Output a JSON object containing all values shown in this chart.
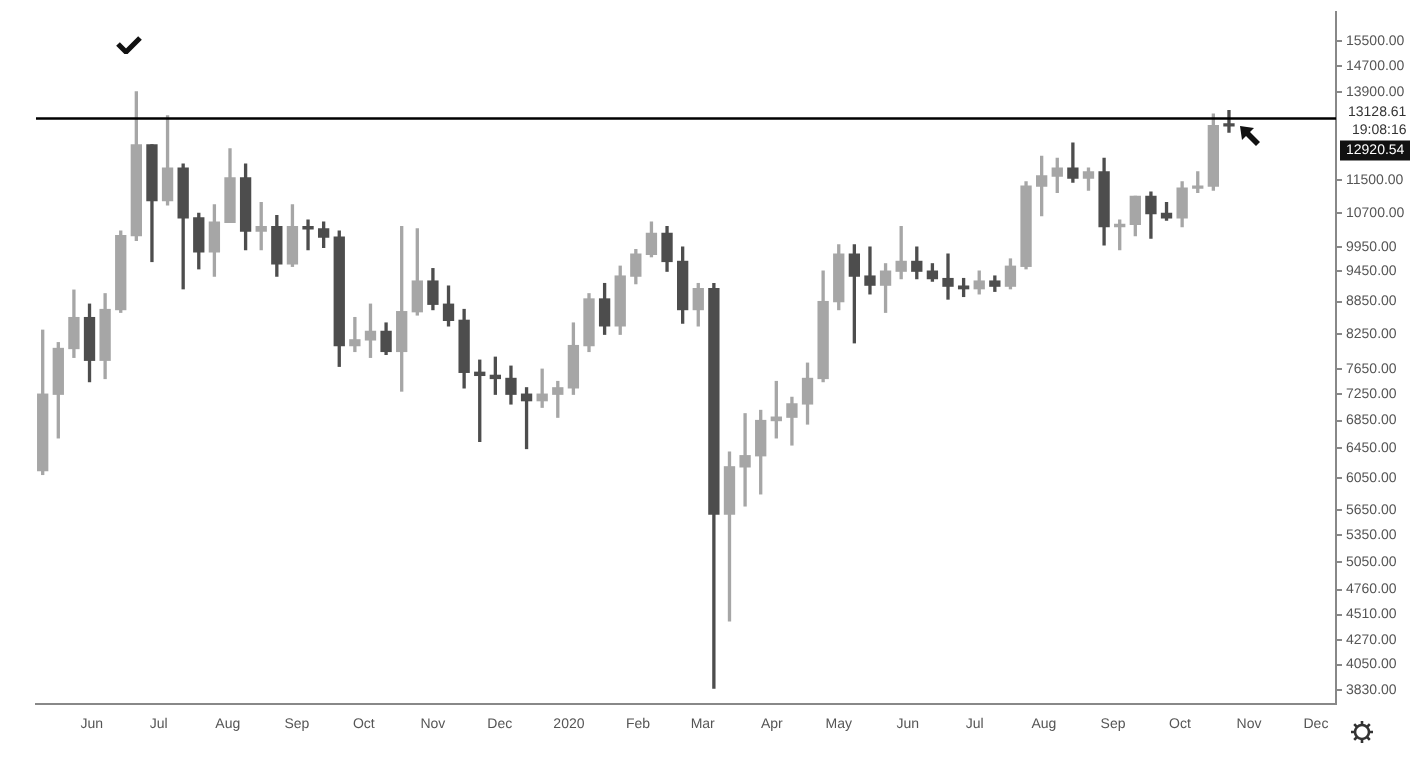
{
  "chart_data": {
    "type": "candlestick",
    "colors": [
      "#a6a6a6",
      "#a6a6a6",
      "#a6a6a6",
      "#4d4d4d",
      "#a6a6a6",
      "#a6a6a6",
      "#a6a6a6",
      "#4d4d4d",
      "#a6a6a6",
      "#4d4d4d",
      "#4d4d4d",
      "#a6a6a6",
      "#a6a6a6",
      "#4d4d4d",
      "#a6a6a6",
      "#4d4d4d",
      "#a6a6a6",
      "#4d4d4d",
      "#4d4d4d",
      "#4d4d4d",
      "#a6a6a6",
      "#a6a6a6",
      "#4d4d4d",
      "#a6a6a6",
      "#a6a6a6",
      "#4d4d4d",
      "#4d4d4d",
      "#4d4d4d",
      "#4d4d4d",
      "#4d4d4d",
      "#4d4d4d",
      "#4d4d4d",
      "#a6a6a6",
      "#a6a6a6",
      "#a6a6a6",
      "#a6a6a6",
      "#4d4d4d",
      "#a6a6a6",
      "#a6a6a6",
      "#a6a6a6",
      "#4d4d4d",
      "#4d4d4d",
      "#a6a6a6",
      "#4d4d4d",
      "#a6a6a6",
      "#a6a6a6",
      "#a6a6a6",
      "#a6a6a6",
      "#a6a6a6",
      "#a6a6a6",
      "#a6a6a6",
      "#a6a6a6",
      "#4d4d4d",
      "#4d4d4d",
      "#a6a6a6",
      "#a6a6a6",
      "#4d4d4d",
      "#4d4d4d",
      "#4d4d4d",
      "#4d4d4d",
      "#a6a6a6",
      "#4d4d4d",
      "#a6a6a6",
      "#a6a6a6",
      "#a6a6a6",
      "#a6a6a6",
      "#4d4d4d",
      "#a6a6a6",
      "#4d4d4d",
      "#a6a6a6",
      "#a6a6a6",
      "#4d4d4d",
      "#4d4d4d",
      "#a6a6a6",
      "#a6a6a6",
      "#a6a6a6",
      "#4d4d4d"
    ],
    "log": "y",
    "grid": false,
    "legend": false,
    "x": [
      "2019-05-10",
      "2019-05-17",
      "2019-05-24",
      "2019-05-31",
      "2019-06-07",
      "2019-06-14",
      "2019-06-21",
      "2019-06-28",
      "2019-07-05",
      "2019-07-12",
      "2019-07-19",
      "2019-07-26",
      "2019-08-02",
      "2019-08-09",
      "2019-08-16",
      "2019-08-23",
      "2019-08-30",
      "2019-09-06",
      "2019-09-13",
      "2019-09-20",
      "2019-09-27",
      "2019-10-04",
      "2019-10-11",
      "2019-10-18",
      "2019-10-25",
      "2019-11-01",
      "2019-11-08",
      "2019-11-15",
      "2019-11-22",
      "2019-11-29",
      "2019-12-06",
      "2019-12-13",
      "2019-12-20",
      "2019-12-27",
      "2020-01-03",
      "2020-01-10",
      "2020-01-17",
      "2020-01-24",
      "2020-01-31",
      "2020-02-07",
      "2020-02-14",
      "2020-02-21",
      "2020-02-28",
      "2020-03-06",
      "2020-03-13",
      "2020-03-20",
      "2020-03-27",
      "2020-04-03",
      "2020-04-10",
      "2020-04-17",
      "2020-04-24",
      "2020-05-01",
      "2020-05-08",
      "2020-05-15",
      "2020-05-22",
      "2020-05-29",
      "2020-06-05",
      "2020-06-12",
      "2020-06-19",
      "2020-06-26",
      "2020-07-03",
      "2020-07-10",
      "2020-07-17",
      "2020-07-24",
      "2020-07-31",
      "2020-08-07",
      "2020-08-14",
      "2020-08-21",
      "2020-08-28",
      "2020-09-04",
      "2020-09-11",
      "2020-09-18",
      "2020-09-25",
      "2020-10-02",
      "2020-10-09",
      "2020-10-16",
      "2020-10-23"
    ],
    "ohlc": [
      [
        6150,
        8320,
        6100,
        7250
      ],
      [
        7250,
        8100,
        6600,
        8000
      ],
      [
        8000,
        9070,
        7850,
        8550
      ],
      [
        8550,
        8800,
        7450,
        7800
      ],
      [
        7800,
        9000,
        7500,
        8700
      ],
      [
        8700,
        10300,
        8650,
        10200
      ],
      [
        10200,
        13900,
        10100,
        12400
      ],
      [
        12400,
        12400,
        9650,
        11000
      ],
      [
        11000,
        13200,
        10900,
        11800
      ],
      [
        11800,
        11900,
        9100,
        10600
      ],
      [
        10600,
        10700,
        9500,
        9850
      ],
      [
        9850,
        10900,
        9350,
        10500
      ],
      [
        10500,
        12300,
        10500,
        11550
      ],
      [
        11550,
        11900,
        9900,
        10300
      ],
      [
        10300,
        10950,
        9900,
        10400
      ],
      [
        10400,
        10650,
        9350,
        9600
      ],
      [
        9600,
        10900,
        9550,
        10400
      ],
      [
        10400,
        10550,
        9900,
        10350
      ],
      [
        10350,
        10500,
        9950,
        10170
      ],
      [
        10170,
        10300,
        7700,
        8050
      ],
      [
        8050,
        8550,
        7950,
        8150
      ],
      [
        8150,
        8800,
        7850,
        8300
      ],
      [
        8300,
        8450,
        7900,
        7950
      ],
      [
        7950,
        10400,
        7300,
        8660
      ],
      [
        8660,
        10350,
        8600,
        9250
      ],
      [
        9250,
        9500,
        8700,
        8800
      ],
      [
        8800,
        9150,
        8400,
        8500
      ],
      [
        8500,
        8700,
        7350,
        7600
      ],
      [
        7600,
        7800,
        6550,
        7550
      ],
      [
        7550,
        7850,
        7250,
        7500
      ],
      [
        7500,
        7700,
        7100,
        7250
      ],
      [
        7250,
        7350,
        6450,
        7150
      ],
      [
        7150,
        7650,
        7050,
        7250
      ],
      [
        7250,
        7450,
        6900,
        7350
      ],
      [
        7350,
        8450,
        7250,
        8050
      ],
      [
        8050,
        9000,
        7950,
        8900
      ],
      [
        8900,
        9200,
        8250,
        8400
      ],
      [
        8400,
        9550,
        8250,
        9350
      ],
      [
        9350,
        9900,
        9200,
        9800
      ],
      [
        9800,
        10500,
        9750,
        10250
      ],
      [
        10250,
        10400,
        9450,
        9650
      ],
      [
        9650,
        9950,
        8450,
        8700
      ],
      [
        8700,
        9200,
        8400,
        9100
      ],
      [
        9100,
        9200,
        3850,
        5600
      ],
      [
        5600,
        6400,
        4450,
        6200
      ],
      [
        6200,
        6950,
        5700,
        6350
      ],
      [
        6350,
        7000,
        5850,
        6850
      ],
      [
        6850,
        7450,
        6600,
        6900
      ],
      [
        6900,
        7200,
        6500,
        7100
      ],
      [
        7100,
        7750,
        6800,
        7500
      ],
      [
        7500,
        9450,
        7450,
        8850
      ],
      [
        8850,
        10000,
        8700,
        9800
      ],
      [
        9800,
        10000,
        8100,
        9350
      ],
      [
        9350,
        9950,
        9000,
        9170
      ],
      [
        9170,
        9600,
        8650,
        9450
      ],
      [
        9450,
        10400,
        9300,
        9650
      ],
      [
        9650,
        9950,
        9300,
        9450
      ],
      [
        9450,
        9600,
        9250,
        9300
      ],
      [
        9300,
        9800,
        8900,
        9150
      ],
      [
        9150,
        9300,
        8950,
        9100
      ],
      [
        9100,
        9450,
        9000,
        9250
      ],
      [
        9250,
        9350,
        9050,
        9150
      ],
      [
        9150,
        9700,
        9100,
        9550
      ],
      [
        9550,
        11450,
        9500,
        11350
      ],
      [
        11350,
        12100,
        10650,
        11600
      ],
      [
        11600,
        12050,
        11200,
        11800
      ],
      [
        11800,
        12450,
        11450,
        11550
      ],
      [
        11550,
        11800,
        11250,
        11700
      ],
      [
        11700,
        12050,
        10000,
        10400
      ],
      [
        10400,
        10550,
        9900,
        10450
      ],
      [
        10450,
        11100,
        10200,
        11100
      ],
      [
        11100,
        11200,
        10150,
        10700
      ],
      [
        10700,
        10950,
        10550,
        10600
      ],
      [
        10600,
        11450,
        10400,
        11300
      ],
      [
        11300,
        11700,
        11200,
        11350
      ],
      [
        11350,
        13250,
        11250,
        12930
      ],
      [
        12930,
        13350,
        12750,
        12920.54
      ]
    ],
    "xlim": [
      "2019-05-07",
      "2020-12-10"
    ],
    "xticks": [
      {
        "value": "2019-06-01",
        "label": "Jun"
      },
      {
        "value": "2019-07-01",
        "label": "Jul"
      },
      {
        "value": "2019-08-01",
        "label": "Aug"
      },
      {
        "value": "2019-09-01",
        "label": "Sep"
      },
      {
        "value": "2019-10-01",
        "label": "Oct"
      },
      {
        "value": "2019-11-01",
        "label": "Nov"
      },
      {
        "value": "2019-12-01",
        "label": "Dec"
      },
      {
        "value": "2020-01-01",
        "label": "2020"
      },
      {
        "value": "2020-02-01",
        "label": "Feb"
      },
      {
        "value": "2020-03-01",
        "label": "Mar"
      },
      {
        "value": "2020-04-01",
        "label": "Apr"
      },
      {
        "value": "2020-05-01",
        "label": "May"
      },
      {
        "value": "2020-06-01",
        "label": "Jun"
      },
      {
        "value": "2020-07-01",
        "label": "Jul"
      },
      {
        "value": "2020-08-01",
        "label": "Aug"
      },
      {
        "value": "2020-09-01",
        "label": "Sep"
      },
      {
        "value": "2020-10-01",
        "label": "Oct"
      },
      {
        "value": "2020-11-01",
        "label": "Nov"
      },
      {
        "value": "2020-12-01",
        "label": "Dec"
      }
    ],
    "ylim": [
      3720,
      16500
    ],
    "yticks": [
      {
        "value": 15500,
        "label": "15500.00"
      },
      {
        "value": 14700,
        "label": "14700.00"
      },
      {
        "value": 13900,
        "label": "13900.00"
      },
      {
        "value": 11500,
        "label": "11500.00"
      },
      {
        "value": 10700,
        "label": "10700.00"
      },
      {
        "value": 9950,
        "label": "9950.00"
      },
      {
        "value": 9450,
        "label": "9450.00"
      },
      {
        "value": 8850,
        "label": "8850.00"
      },
      {
        "value": 8250,
        "label": "8250.00"
      },
      {
        "value": 7650,
        "label": "7650.00"
      },
      {
        "value": 7250,
        "label": "7250.00"
      },
      {
        "value": 6850,
        "label": "6850.00"
      },
      {
        "value": 6450,
        "label": "6450.00"
      },
      {
        "value": 6050,
        "label": "6050.00"
      },
      {
        "value": 5650,
        "label": "5650.00"
      },
      {
        "value": 5350,
        "label": "5350.00"
      },
      {
        "value": 5050,
        "label": "5050.00"
      },
      {
        "value": 4760,
        "label": "4760.00"
      },
      {
        "value": 4510,
        "label": "4510.00"
      },
      {
        "value": 4270,
        "label": "4270.00"
      },
      {
        "value": 4050,
        "label": "4050.00"
      },
      {
        "value": 3830,
        "label": "3830.00"
      }
    ],
    "ref_lines": [
      {
        "axis": "y",
        "value": 13128.61,
        "label": "13128.61",
        "color": "#000000"
      }
    ],
    "annotations": [
      "19:08:16",
      "12920.54"
    ]
  }
}
